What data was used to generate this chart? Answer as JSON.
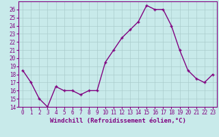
{
  "x": [
    0,
    1,
    2,
    3,
    4,
    5,
    6,
    7,
    8,
    9,
    10,
    11,
    12,
    13,
    14,
    15,
    16,
    17,
    18,
    19,
    20,
    21,
    22,
    23
  ],
  "y": [
    18.5,
    17.0,
    15.0,
    14.0,
    16.5,
    16.0,
    16.0,
    15.5,
    16.0,
    16.0,
    19.5,
    21.0,
    22.5,
    23.5,
    24.5,
    26.5,
    26.0,
    26.0,
    24.0,
    21.0,
    18.5,
    17.5,
    17.0,
    18.0
  ],
  "line_color": "#800080",
  "marker": "+",
  "bg_color": "#c8eaea",
  "grid_color": "#aacccc",
  "xlabel": "Windchill (Refroidissement éolien,°C)",
  "ylim": [
    14,
    27
  ],
  "xlim": [
    -0.5,
    23.5
  ],
  "yticks": [
    14,
    15,
    16,
    17,
    18,
    19,
    20,
    21,
    22,
    23,
    24,
    25,
    26
  ],
  "xticks": [
    0,
    1,
    2,
    3,
    4,
    5,
    6,
    7,
    8,
    9,
    10,
    11,
    12,
    13,
    14,
    15,
    16,
    17,
    18,
    19,
    20,
    21,
    22,
    23
  ],
  "axis_color": "#800080",
  "tick_color": "#800080",
  "label_color": "#800080",
  "line_width": 1.0,
  "marker_size": 3.5,
  "tick_fontsize": 5.5,
  "xlabel_fontsize": 6.5
}
